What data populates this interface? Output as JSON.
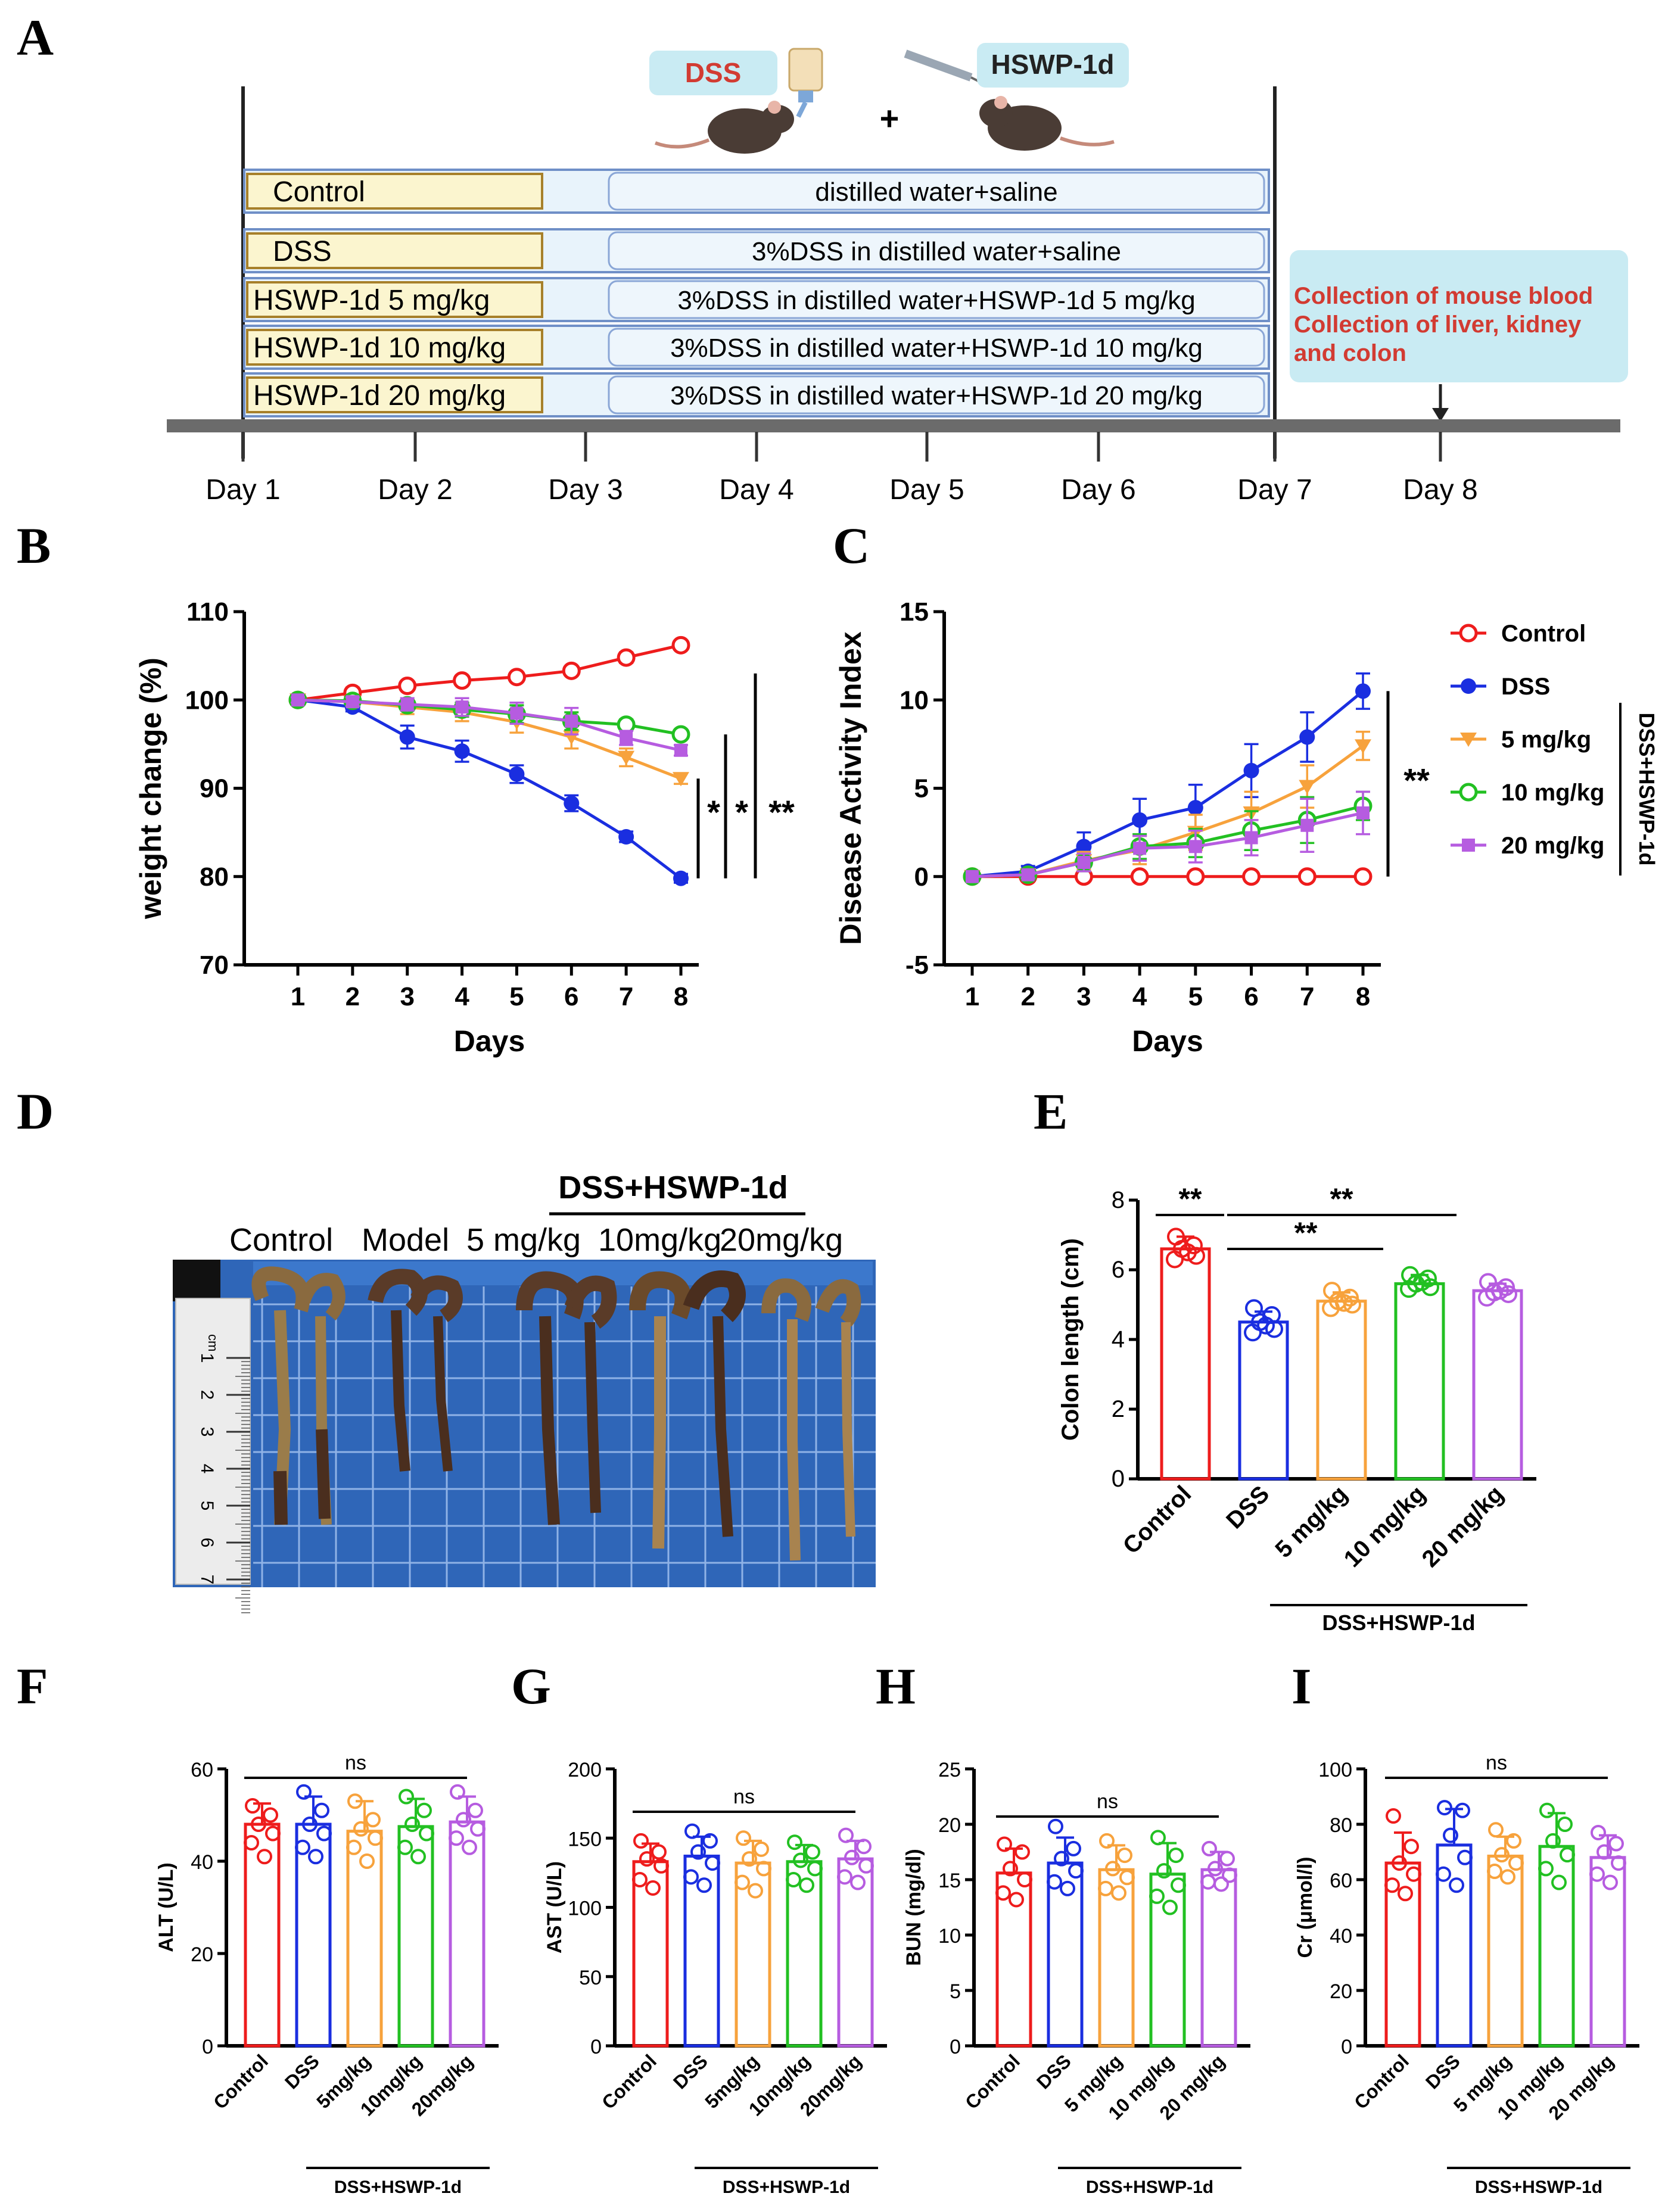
{
  "panels": {
    "A": "A",
    "B": "B",
    "C": "C",
    "D": "D",
    "E": "E",
    "F": "F",
    "G": "G",
    "H": "H",
    "I": "I"
  },
  "panel_a": {
    "dss_label": "DSS",
    "hswp_label": "HSWP-1d",
    "plus": "+",
    "groups": [
      {
        "name": "Control",
        "treatment": "distilled water+saline"
      },
      {
        "name": "DSS",
        "treatment": "3%DSS in distilled water+saline"
      },
      {
        "name": "HSWP-1d 5 mg/kg",
        "treatment": "3%DSS in  distilled water+HSWP-1d 5 mg/kg"
      },
      {
        "name": "HSWP-1d 10 mg/kg",
        "treatment": "3%DSS in  distilled water+HSWP-1d 10 mg/kg"
      },
      {
        "name": "HSWP-1d 20 mg/kg",
        "treatment": "3%DSS in  distilled water+HSWP-1d 20 mg/kg"
      }
    ],
    "collection": [
      "Collection of mouse blood",
      "Collection of liver, kidney",
      "and colon"
    ],
    "days": [
      "Day 1",
      "Day 2",
      "Day 3",
      "Day 4",
      "Day 5",
      "Day 6",
      "Day 7",
      "Day 8"
    ],
    "colors": {
      "label_box": "#fbf5cf",
      "label_border": "#a7802a",
      "treat_box": "#e8f3fb",
      "treat_border": "#6f8fc7",
      "collection_box": "#c9ebf3",
      "collection_text": "#d23b32"
    }
  },
  "panel_d": {
    "group_labels": [
      "Control",
      "Model",
      "5 mg/kg",
      "10mg/kg",
      "20mg/kg"
    ],
    "bracket_label": "DSS+HSWP-1d",
    "ruler_unit": "cm",
    "ruler_numbers": [
      "1",
      "2",
      "3",
      "4",
      "5",
      "6",
      "7"
    ],
    "colors": {
      "board": "#2f66b8",
      "grid": "#8fb2e6",
      "colon": "#5a3b28",
      "stool": "#a8834f"
    }
  },
  "series_colors": {
    "Control": "#ee1c1c",
    "DSS": "#1a2ee0",
    "5 mg/kg": "#f7a23c",
    "10 mg/kg": "#22c022",
    "20 mg/kg": "#b65ce0"
  },
  "legend_group_label": "DSS+HSWP-1d",
  "chart_data": [
    {
      "id": "B",
      "type": "line",
      "xlabel": "Days",
      "ylabel": "weight change (%)",
      "x": [
        1,
        2,
        3,
        4,
        5,
        6,
        7,
        8
      ],
      "ylim": [
        70,
        110
      ],
      "yticks": [
        70,
        80,
        90,
        100,
        110
      ],
      "series": [
        {
          "name": "Control",
          "values": [
            100,
            100.8,
            101.6,
            102.2,
            102.6,
            103.3,
            104.8,
            106.2
          ],
          "err": [
            0.3,
            0.6,
            0.5,
            0.4,
            0.5,
            0.5,
            0.6,
            0.5
          ],
          "marker": "open-circle"
        },
        {
          "name": "DSS",
          "values": [
            100,
            99.2,
            95.8,
            94.2,
            91.6,
            88.3,
            84.5,
            79.8
          ],
          "err": [
            0.3,
            0.5,
            1.3,
            1.2,
            1.0,
            0.9,
            0.6,
            0.5
          ],
          "marker": "filled-circle"
        },
        {
          "name": "5 mg/kg",
          "values": [
            100,
            99.8,
            99.2,
            98.6,
            97.5,
            95.8,
            93.5,
            91.1
          ],
          "err": [
            0.3,
            0.5,
            0.8,
            1.0,
            1.2,
            1.3,
            1.0,
            0.6
          ],
          "marker": "triangle-down"
        },
        {
          "name": "10 mg/kg",
          "values": [
            100,
            99.9,
            99.4,
            98.9,
            98.4,
            97.6,
            97.2,
            96.1
          ],
          "err": [
            0.3,
            0.5,
            0.6,
            0.8,
            1.0,
            1.0,
            0.6,
            0.4
          ],
          "marker": "open-circle"
        },
        {
          "name": "20 mg/kg",
          "values": [
            100,
            99.8,
            99.5,
            99.2,
            98.5,
            97.6,
            95.7,
            94.3
          ],
          "err": [
            0.3,
            0.5,
            0.7,
            1.0,
            1.2,
            1.5,
            0.8,
            0.6
          ],
          "marker": "square"
        }
      ],
      "significance": [
        "*",
        "*",
        "**"
      ]
    },
    {
      "id": "C",
      "type": "line",
      "xlabel": "Days",
      "ylabel": "Disease Activity Index",
      "x": [
        1,
        2,
        3,
        4,
        5,
        6,
        7,
        8
      ],
      "ylim": [
        -5,
        15
      ],
      "yticks": [
        -5,
        0,
        5,
        10,
        15
      ],
      "series": [
        {
          "name": "Control",
          "values": [
            0,
            0,
            0,
            0,
            0,
            0,
            0,
            0
          ],
          "err": [
            0,
            0,
            0,
            0,
            0,
            0,
            0,
            0
          ],
          "marker": "open-circle"
        },
        {
          "name": "DSS",
          "values": [
            0,
            0.3,
            1.7,
            3.2,
            3.9,
            6.0,
            7.9,
            10.5
          ],
          "err": [
            0,
            0.3,
            0.8,
            1.2,
            1.3,
            1.5,
            1.4,
            1.0
          ],
          "marker": "filled-circle"
        },
        {
          "name": "5 mg/kg",
          "values": [
            0,
            0.1,
            0.9,
            1.5,
            2.5,
            3.6,
            5.1,
            7.4
          ],
          "err": [
            0,
            0.2,
            0.5,
            0.8,
            1.0,
            1.2,
            1.2,
            0.8
          ],
          "marker": "triangle-down"
        },
        {
          "name": "10 mg/kg",
          "values": [
            0,
            0.1,
            0.8,
            1.7,
            1.9,
            2.6,
            3.2,
            4.0
          ],
          "err": [
            0,
            0.2,
            0.5,
            0.7,
            0.8,
            1.1,
            1.3,
            0.8
          ],
          "marker": "open-circle"
        },
        {
          "name": "20 mg/kg",
          "values": [
            0,
            0.1,
            0.8,
            1.6,
            1.7,
            2.2,
            2.9,
            3.6
          ],
          "err": [
            0,
            0.2,
            0.5,
            0.7,
            0.9,
            1.0,
            1.5,
            1.2
          ],
          "marker": "square"
        }
      ],
      "significance": [
        "**"
      ]
    },
    {
      "id": "E",
      "type": "bar",
      "ylabel": "Colon length (cm)",
      "categories": [
        "Control",
        "DSS",
        "5 mg/kg",
        "10 mg/kg",
        "20 mg/kg"
      ],
      "values": [
        6.6,
        4.5,
        5.1,
        5.6,
        5.4
      ],
      "err": [
        0.35,
        0.3,
        0.25,
        0.25,
        0.2
      ],
      "points": [
        [
          6.95,
          6.7,
          6.6,
          6.4,
          6.3,
          6.5
        ],
        [
          4.9,
          4.7,
          4.5,
          4.3,
          4.2,
          4.4
        ],
        [
          5.4,
          5.2,
          5.1,
          5.0,
          4.9,
          5.05
        ],
        [
          5.85,
          5.75,
          5.6,
          5.5,
          5.45,
          5.65
        ],
        [
          5.65,
          5.5,
          5.35,
          5.3,
          5.2,
          5.4
        ]
      ],
      "ylim": [
        0,
        8
      ],
      "yticks": [
        0,
        2,
        4,
        6,
        8
      ],
      "group_label": "DSS+HSWP-1d",
      "comparisons": [
        {
          "from": 0,
          "to": 1,
          "label": "**"
        },
        {
          "from": 1,
          "to": 3,
          "label": "**"
        },
        {
          "from": 1,
          "to": 4,
          "label": "**"
        }
      ]
    },
    {
      "id": "F",
      "type": "bar",
      "ylabel": "ALT (U/L)",
      "categories": [
        "Control",
        "DSS",
        "5mg/kg",
        "10mg/kg",
        "20mg/kg"
      ],
      "values": [
        48,
        48,
        46.5,
        47.5,
        48.5
      ],
      "err": [
        4.5,
        6,
        6.5,
        6,
        5.5
      ],
      "points": [
        [
          52,
          50,
          48,
          46,
          44,
          41
        ],
        [
          55,
          51,
          48,
          46,
          43,
          41
        ],
        [
          53,
          49,
          47,
          45,
          43,
          40
        ],
        [
          54,
          51,
          48,
          46,
          43,
          41
        ],
        [
          55,
          51,
          49,
          47,
          45,
          43
        ]
      ],
      "ylim": [
        0,
        60
      ],
      "yticks": [
        0,
        20,
        40,
        60
      ],
      "group_label": "DSS+HSWP-1d",
      "comparisons": [
        {
          "from": 0,
          "to": 4,
          "label": "ns"
        }
      ]
    },
    {
      "id": "G",
      "type": "bar",
      "ylabel": "AST (U/L)",
      "categories": [
        "Control",
        "DSS",
        "5mg/kg",
        "10mg/kg",
        "20mg/kg"
      ],
      "values": [
        133,
        137,
        132,
        133,
        135
      ],
      "err": [
        13,
        14,
        16,
        12,
        13
      ],
      "points": [
        [
          148,
          140,
          135,
          130,
          120,
          114
        ],
        [
          155,
          148,
          140,
          132,
          122,
          116
        ],
        [
          150,
          142,
          135,
          128,
          118,
          112
        ],
        [
          147,
          140,
          134,
          128,
          120,
          116
        ],
        [
          152,
          144,
          136,
          130,
          122,
          118
        ]
      ],
      "ylim": [
        0,
        200
      ],
      "yticks": [
        0,
        50,
        100,
        150,
        200
      ],
      "group_label": "DSS+HSWP-1d",
      "comparisons": [
        {
          "from": 0,
          "to": 4,
          "label": "ns"
        }
      ]
    },
    {
      "id": "H",
      "type": "bar",
      "ylabel": "BUN (mg/dl)",
      "categories": [
        "Control",
        "DSS",
        "5 mg/kg",
        "10 mg/kg",
        "20 mg/kg"
      ],
      "values": [
        15.6,
        16.5,
        15.9,
        15.5,
        15.9
      ],
      "err": [
        2.2,
        2.3,
        2.2,
        2.8,
        1.6
      ],
      "points": [
        [
          18.2,
          17.5,
          16,
          15,
          13.8,
          13.2
        ],
        [
          19.8,
          17.8,
          16.9,
          15.8,
          14.8,
          14.2
        ],
        [
          18.5,
          17.2,
          16,
          15.2,
          14.2,
          13.8
        ],
        [
          18.8,
          17.2,
          15.8,
          14.5,
          13.5,
          12.5
        ],
        [
          17.8,
          16.9,
          16,
          15.4,
          14.8,
          14.6
        ]
      ],
      "ylim": [
        0,
        25
      ],
      "yticks": [
        0,
        5,
        10,
        15,
        20,
        25
      ],
      "group_label": "DSS+HSWP-1d",
      "comparisons": [
        {
          "from": 0,
          "to": 4,
          "label": "ns"
        }
      ]
    },
    {
      "id": "I",
      "type": "bar",
      "ylabel": "Cr (μmol/l)",
      "categories": [
        "Control",
        "DSS",
        "5 mg/kg",
        "10 mg/kg",
        "20 mg/kg"
      ],
      "values": [
        66,
        72.5,
        68.5,
        72,
        68
      ],
      "err": [
        11,
        13,
        7,
        12,
        8
      ],
      "points": [
        [
          83,
          72,
          66,
          62,
          58,
          55
        ],
        [
          86,
          85,
          76,
          68,
          62,
          58
        ],
        [
          78,
          74,
          69,
          66,
          63,
          61
        ],
        [
          85,
          80,
          74,
          69,
          64,
          59
        ],
        [
          77,
          73,
          70,
          66,
          62,
          59
        ]
      ],
      "ylim": [
        0,
        100
      ],
      "yticks": [
        0,
        20,
        40,
        60,
        80,
        100
      ],
      "group_label": "DSS+HSWP-1d",
      "comparisons": [
        {
          "from": 0,
          "to": 4,
          "label": "ns"
        }
      ]
    }
  ]
}
